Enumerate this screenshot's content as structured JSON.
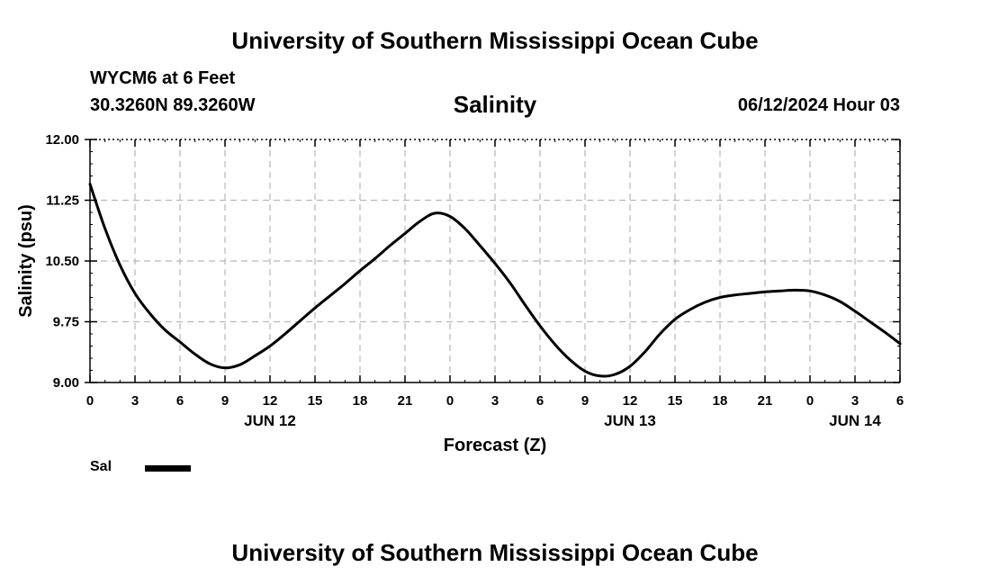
{
  "header": {
    "organization": "University of Southern Mississippi Ocean Cube",
    "station": "WYCM6 at 6 Feet",
    "coordinates": "30.3260N  89.3260W",
    "plot_title": "Salinity",
    "datetime": "06/12/2024 Hour 03"
  },
  "footer": {
    "organization": "University of Southern Mississippi Ocean Cube"
  },
  "legend": {
    "label": "Sal"
  },
  "chart_data": {
    "type": "line",
    "title": "Salinity",
    "xlabel": "Forecast (Z)",
    "ylabel": "Salinity (psu)",
    "xlim": [
      0,
      54
    ],
    "ylim": [
      9.0,
      12.0
    ],
    "y_ticks": [
      "12.00",
      "11.25",
      "10.50",
      "9.75",
      "9.00"
    ],
    "x_ticks": [
      "0",
      "3",
      "6",
      "9",
      "12",
      "15",
      "18",
      "21",
      "0",
      "3",
      "6",
      "9",
      "12",
      "15",
      "18",
      "21",
      "0",
      "3",
      "6"
    ],
    "date_labels": [
      {
        "label": "JUN 12",
        "x": 12
      },
      {
        "label": "JUN 13",
        "x": 36
      },
      {
        "label": "JUN 14",
        "x": 51
      }
    ],
    "grid": true,
    "legend_placement": "bottom-left",
    "series": [
      {
        "name": "Sal",
        "color": "#000000",
        "x": [
          0,
          1,
          2,
          3,
          4,
          5,
          6,
          7,
          8,
          9,
          10,
          11,
          12,
          13,
          14,
          15,
          16,
          17,
          18,
          19,
          20,
          21,
          22,
          23,
          24,
          25,
          26,
          27,
          28,
          29,
          30,
          31,
          32,
          33,
          34,
          35,
          36,
          37,
          38,
          39,
          40,
          41,
          42,
          43,
          44,
          45,
          46,
          47,
          48,
          49,
          50,
          51,
          52,
          53,
          54
        ],
        "values": [
          11.45,
          10.9,
          10.45,
          10.1,
          9.85,
          9.65,
          9.5,
          9.35,
          9.23,
          9.18,
          9.22,
          9.33,
          9.45,
          9.6,
          9.76,
          9.92,
          10.07,
          10.22,
          10.38,
          10.53,
          10.69,
          10.84,
          10.99,
          11.09,
          11.05,
          10.9,
          10.69,
          10.47,
          10.23,
          9.96,
          9.7,
          9.47,
          9.28,
          9.14,
          9.08,
          9.1,
          9.2,
          9.38,
          9.6,
          9.78,
          9.9,
          9.99,
          10.05,
          10.08,
          10.1,
          10.12,
          10.13,
          10.14,
          10.13,
          10.08,
          10.0,
          9.88,
          9.75,
          9.62,
          9.48
        ]
      }
    ]
  }
}
